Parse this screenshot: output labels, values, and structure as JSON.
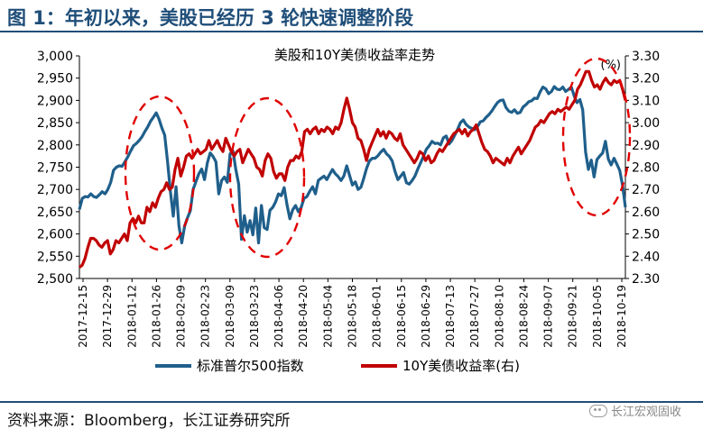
{
  "figure_title": "图 1：年初以来，美股已经历 3 轮快速调整阶段",
  "source_note": "资料来源：Bloomberg，长江证券研究所",
  "watermark": "长江宏观固收",
  "colors": {
    "sp500": "#1f5f8b",
    "yield": "#c00000",
    "ellipse": "#e00000",
    "title": "#1f4e79"
  },
  "chart_data": {
    "type": "line",
    "title": "美股和10Y美债收益率走势",
    "right_unit_label": "(%)",
    "x_tick_labels": [
      "2017-12-15",
      "2017-12-29",
      "2018-01-12",
      "2018-01-26",
      "2018-02-09",
      "2018-02-23",
      "2018-03-09",
      "2018-03-23",
      "2018-04-06",
      "2018-04-20",
      "2018-05-04",
      "2018-05-18",
      "2018-06-01",
      "2018-06-15",
      "2018-06-29",
      "2018-07-13",
      "2018-07-27",
      "2018-08-10",
      "2018-08-24",
      "2018-09-07",
      "2018-09-21",
      "2018-10-05",
      "2018-10-19"
    ],
    "left_axis": {
      "min": 2500,
      "max": 3000,
      "ticks": [
        "2,500",
        "2,550",
        "2,600",
        "2,650",
        "2,700",
        "2,750",
        "2,800",
        "2,850",
        "2,900",
        "2,950",
        "3,000"
      ]
    },
    "right_axis": {
      "min": 2.3,
      "max": 3.3,
      "ticks": [
        "2.30",
        "2.40",
        "2.50",
        "2.60",
        "2.70",
        "2.80",
        "2.90",
        "3.00",
        "3.10",
        "3.20",
        "3.30"
      ]
    },
    "series": [
      {
        "name": "标准普尔500指数",
        "axis": "left",
        "values": [
          2655,
          2680,
          2684,
          2683,
          2690,
          2684,
          2682,
          2688,
          2695,
          2690,
          2700,
          2716,
          2743,
          2750,
          2753,
          2752,
          2762,
          2773,
          2786,
          2798,
          2803,
          2810,
          2818,
          2830,
          2840,
          2853,
          2862,
          2872,
          2858,
          2838,
          2822,
          2762,
          2696,
          2640,
          2706,
          2618,
          2580,
          2618,
          2636,
          2652,
          2700,
          2718,
          2735,
          2746,
          2722,
          2760,
          2782,
          2774,
          2762,
          2690,
          2720,
          2728,
          2716,
          2780,
          2786,
          2745,
          2712,
          2588,
          2641,
          2604,
          2630,
          2598,
          2658,
          2580,
          2664,
          2614,
          2610,
          2653,
          2660,
          2672,
          2690,
          2686,
          2704,
          2666,
          2634,
          2654,
          2664,
          2650,
          2660,
          2680,
          2684,
          2696,
          2706,
          2690,
          2720,
          2725,
          2730,
          2722,
          2734,
          2745,
          2735,
          2729,
          2720,
          2730,
          2753,
          2732,
          2710,
          2717,
          2700,
          2705,
          2725,
          2748,
          2764,
          2770,
          2770,
          2776,
          2784,
          2790,
          2780,
          2774,
          2764,
          2740,
          2722,
          2730,
          2738,
          2715,
          2712,
          2720,
          2730,
          2746,
          2760,
          2774,
          2790,
          2798,
          2808,
          2803,
          2804,
          2800,
          2816,
          2820,
          2802,
          2810,
          2822,
          2835,
          2850,
          2856,
          2846,
          2840,
          2837,
          2834,
          2841,
          2852,
          2854,
          2862,
          2868,
          2876,
          2886,
          2895,
          2900,
          2901,
          2884,
          2876,
          2873,
          2879,
          2871,
          2873,
          2885,
          2890,
          2897,
          2899,
          2905,
          2904,
          2919,
          2930,
          2926,
          2915,
          2920,
          2931,
          2925,
          2924,
          2930,
          2920,
          2925,
          2930,
          2910,
          2895,
          2902,
          2879,
          2784,
          2745,
          2766,
          2728,
          2767,
          2775,
          2782,
          2808,
          2768,
          2755,
          2770,
          2757,
          2743,
          2710,
          2660
        ]
      },
      {
        "name": "10Y美债收益率(右)",
        "axis": "right",
        "values": [
          2.35,
          2.36,
          2.39,
          2.44,
          2.48,
          2.48,
          2.47,
          2.45,
          2.44,
          2.46,
          2.47,
          2.41,
          2.43,
          2.47,
          2.46,
          2.48,
          2.5,
          2.47,
          2.55,
          2.57,
          2.55,
          2.58,
          2.55,
          2.55,
          2.62,
          2.6,
          2.64,
          2.62,
          2.66,
          2.69,
          2.7,
          2.73,
          2.7,
          2.71,
          2.79,
          2.84,
          2.76,
          2.8,
          2.85,
          2.86,
          2.84,
          2.86,
          2.88,
          2.86,
          2.87,
          2.88,
          2.92,
          2.88,
          2.9,
          2.92,
          2.89,
          2.87,
          2.93,
          2.9,
          2.87,
          2.85,
          2.87,
          2.88,
          2.82,
          2.85,
          2.88,
          2.86,
          2.84,
          2.8,
          2.79,
          2.76,
          2.83,
          2.86,
          2.84,
          2.78,
          2.75,
          2.77,
          2.77,
          2.74,
          2.8,
          2.83,
          2.83,
          2.85,
          2.84,
          2.87,
          2.96,
          2.97,
          2.95,
          2.97,
          2.98,
          2.95,
          2.97,
          2.96,
          2.98,
          2.97,
          2.95,
          2.98,
          2.97,
          3.0,
          3.06,
          3.11,
          3.06,
          3.0,
          2.98,
          2.93,
          2.92,
          2.88,
          2.83,
          2.88,
          2.91,
          2.94,
          2.97,
          2.94,
          2.96,
          2.93,
          2.96,
          2.95,
          2.93,
          2.92,
          2.95,
          2.9,
          2.88,
          2.86,
          2.84,
          2.82,
          2.84,
          2.87,
          2.86,
          2.83,
          2.85,
          2.82,
          2.83,
          2.86,
          2.88,
          2.87,
          2.89,
          2.91,
          2.93,
          2.95,
          2.96,
          2.97,
          2.95,
          2.97,
          2.94,
          2.96,
          2.97,
          2.99,
          2.95,
          2.91,
          2.88,
          2.87,
          2.85,
          2.82,
          2.84,
          2.83,
          2.82,
          2.81,
          2.84,
          2.82,
          2.85,
          2.87,
          2.89,
          2.86,
          2.88,
          2.9,
          2.92,
          2.95,
          2.98,
          2.99,
          3.01,
          3.0,
          3.02,
          3.04,
          3.05,
          3.04,
          3.06,
          3.05,
          3.06,
          3.07,
          3.06,
          3.08,
          3.1,
          3.15,
          3.17,
          3.2,
          3.23,
          3.23,
          3.19,
          3.16,
          3.17,
          3.15,
          3.18,
          3.2,
          3.18,
          3.17,
          3.19,
          3.18,
          3.19,
          3.15,
          3.1
        ]
      }
    ],
    "legend": [
      "标准普尔500指数",
      "10Y美债收益率(右)"
    ],
    "annotations": [
      "dashed ellipse around 2018-01-26 to 2018-02-09 sell-off",
      "dashed ellipse around 2018-03-23 to 2018-04-06 sell-off",
      "dashed ellipse around October 2018 sell-off"
    ]
  }
}
